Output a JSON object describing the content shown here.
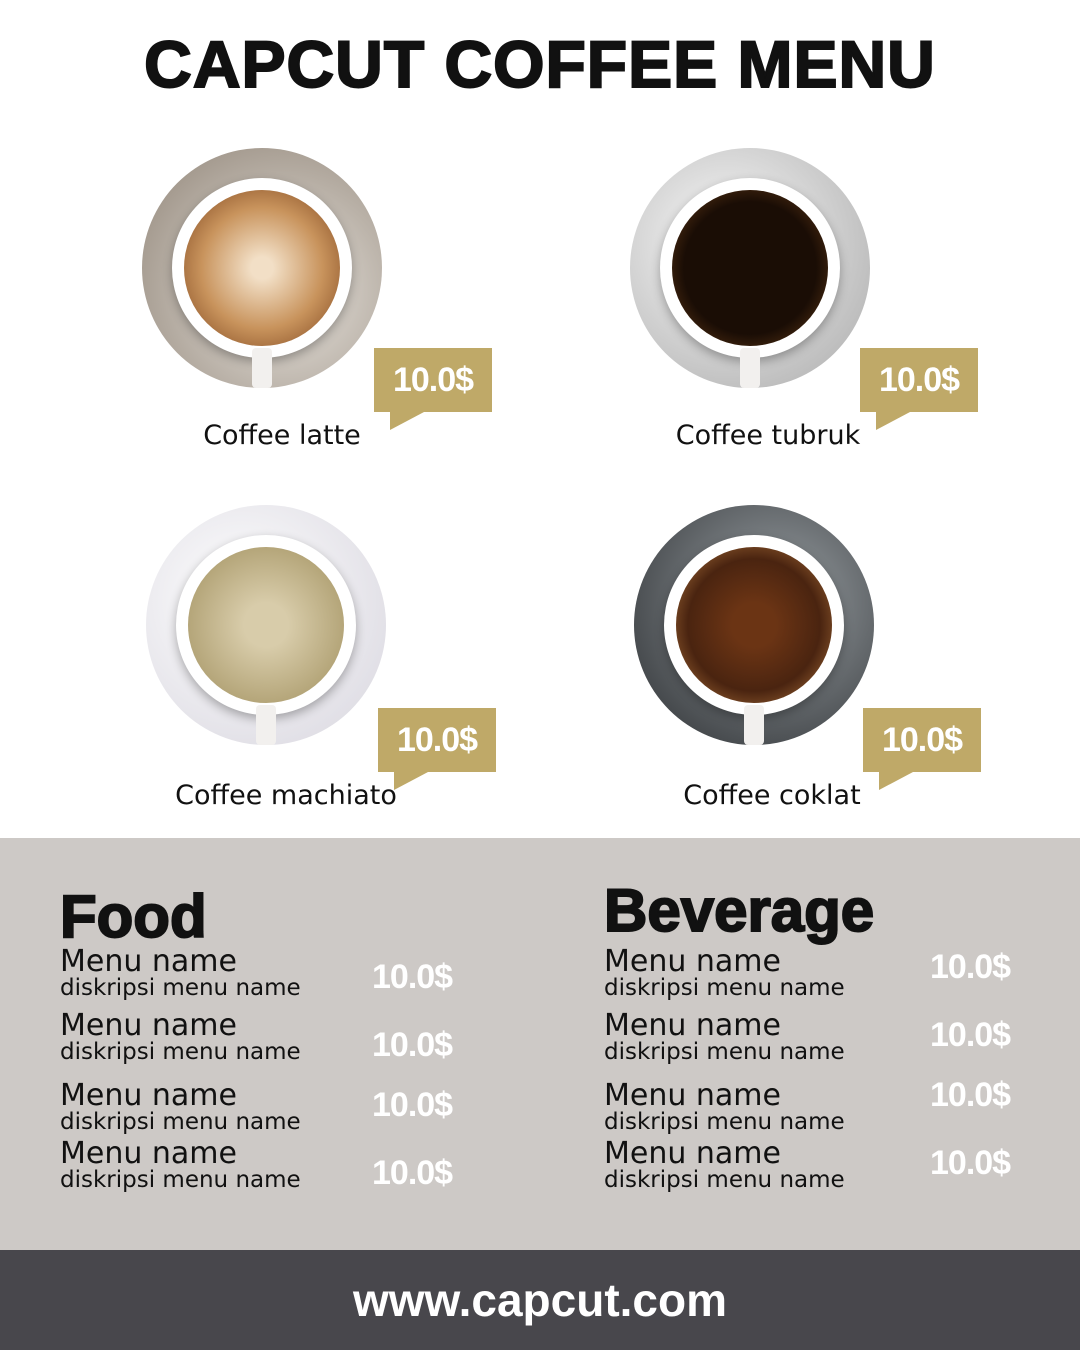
{
  "title": "CAPCUT COFFEE MENU",
  "colors": {
    "accent": "#bfa968",
    "panel": "#cdc9c6",
    "footer": "#48474c"
  },
  "products": [
    {
      "name": "Coffee latte",
      "price": "10.0$"
    },
    {
      "name": "Coffee tubruk",
      "price": "10.0$"
    },
    {
      "name": "Coffee machiato",
      "price": "10.0$"
    },
    {
      "name": "Coffee coklat",
      "price": "10.0$"
    }
  ],
  "food": {
    "title": "Food",
    "items": [
      {
        "name": "Menu name",
        "desc": "diskripsi menu name",
        "price": "10.0$"
      },
      {
        "name": "Menu name",
        "desc": "diskripsi menu name",
        "price": "10.0$"
      },
      {
        "name": "Menu name",
        "desc": "diskripsi menu name",
        "price": "10.0$"
      },
      {
        "name": "Menu name",
        "desc": "diskripsi menu name",
        "price": "10.0$"
      }
    ]
  },
  "beverage": {
    "title": "Beverage",
    "items": [
      {
        "name": "Menu name",
        "desc": "diskripsi menu name",
        "price": "10.0$"
      },
      {
        "name": "Menu name",
        "desc": "diskripsi menu name",
        "price": "10.0$"
      },
      {
        "name": "Menu name",
        "desc": "diskripsi menu name",
        "price": "10.0$"
      },
      {
        "name": "Menu name",
        "desc": "diskripsi menu name",
        "price": "10.0$"
      }
    ]
  },
  "footer": {
    "url": "www.capcut.com"
  }
}
